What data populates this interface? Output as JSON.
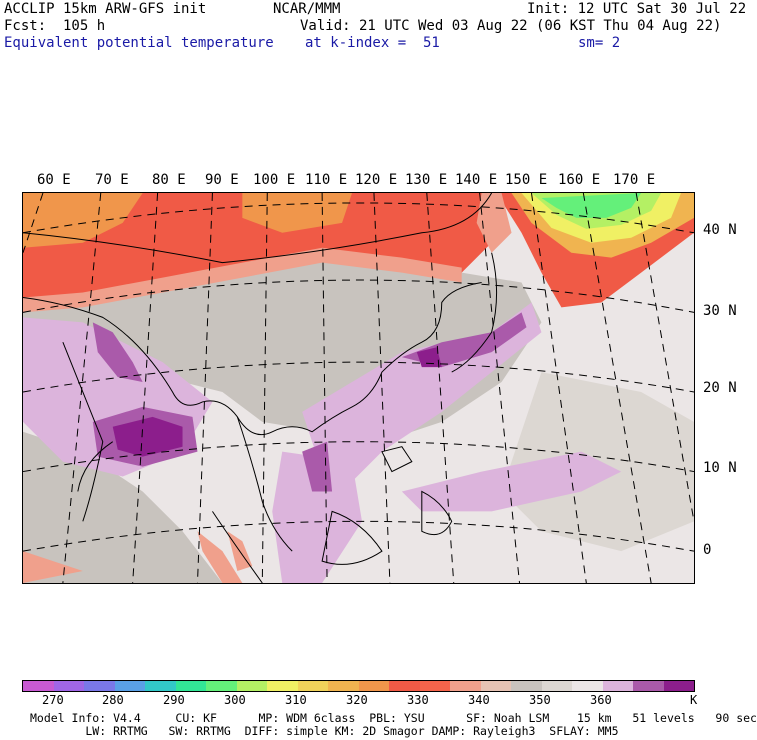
{
  "header": {
    "model": "ACCLIP 15km ARW-GFS init",
    "org": "NCAR/MMM",
    "init": "Init: 12 UTC Sat 30 Jul 22",
    "fcst": "Fcst:  105 h",
    "valid": "Valid: 21 UTC Wed 03 Aug 22 (06 KST Thu 04 Aug 22)",
    "field": "Equivalent potential temperature",
    "level": "at k-index =  51",
    "smooth": "sm= 2"
  },
  "map": {
    "lon_labels": [
      "60 E",
      "70 E",
      "80 E",
      "90 E",
      "100 E",
      "110 E",
      "120 E",
      "130 E",
      "140 E",
      "150 E",
      "160 E",
      "170 E"
    ],
    "lat_labels": [
      "40 N",
      "30 N",
      "20 N",
      "10 N",
      "0"
    ]
  },
  "colorbar": {
    "colors": [
      "#c85ad2",
      "#a066e6",
      "#7a78e8",
      "#5aa0e6",
      "#32c8c8",
      "#32e696",
      "#64f07a",
      "#b4f064",
      "#f0f064",
      "#f0d25a",
      "#f0b450",
      "#f0964b",
      "#f05a46",
      "#f5644b",
      "#f0a08c",
      "#e6c3b4",
      "#c8c3be",
      "#dcd7d2",
      "#ebe6e6",
      "#dcb4dc",
      "#aa5aaa",
      "#8c1e8c"
    ],
    "labels": [
      "270",
      "280",
      "290",
      "300",
      "310",
      "320",
      "330",
      "340",
      "350",
      "360",
      "K"
    ]
  },
  "footer": {
    "line1": "Model Info: V4.4     CU: KF      MP: WDM 6class  PBL: YSU      SF: Noah LSM    15 km   51 levels   90 sec",
    "line2": "        LW: RRTMG   SW: RRTMG  DIFF: simple KM: 2D Smagor DAMP: Rayleigh3  SFLAY: MM5"
  }
}
